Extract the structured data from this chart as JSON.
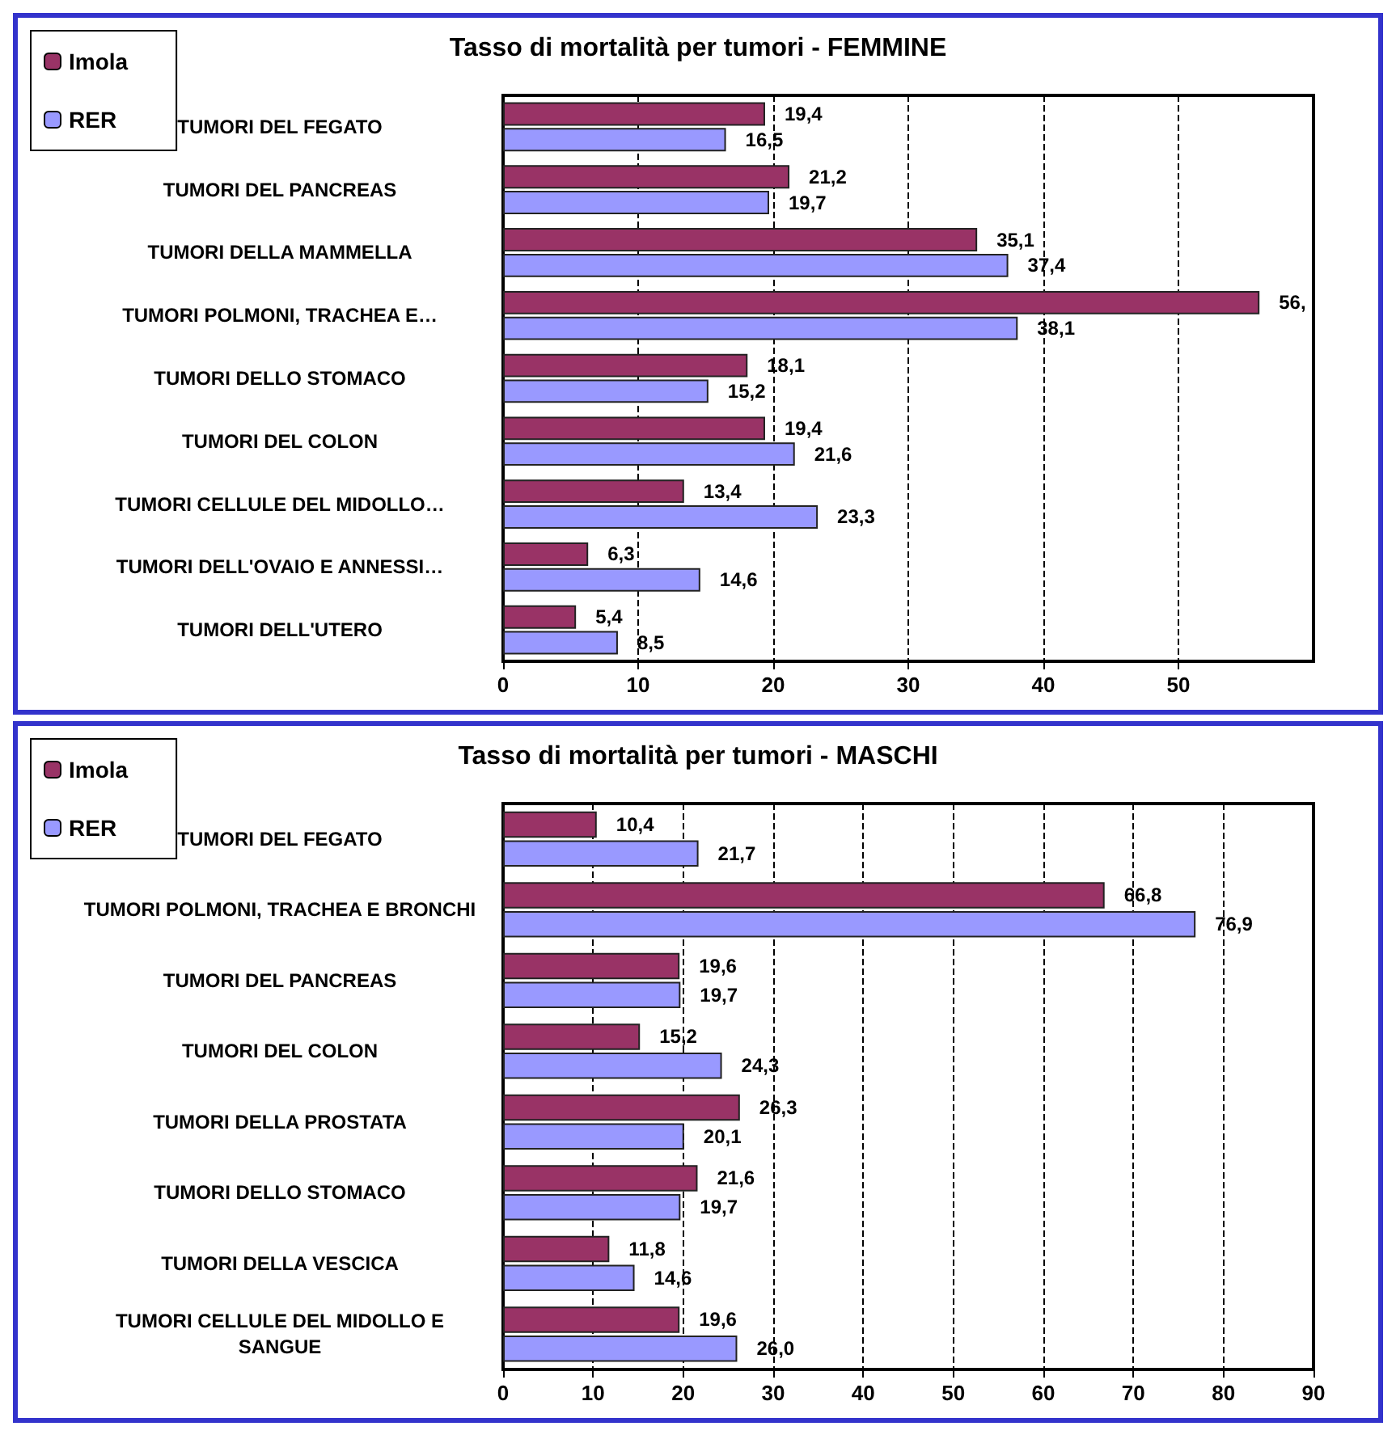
{
  "chart_data": [
    {
      "type": "bar",
      "orientation": "horizontal",
      "title": "Tasso di mortalità per tumori - FEMMINE",
      "categories": [
        "TUMORI DEL FEGATO",
        "TUMORI DEL PANCREAS",
        "TUMORI DELLA MAMMELLA",
        "TUMORI POLMONI, TRACHEA E…",
        "TUMORI DELLO STOMACO",
        "TUMORI DEL COLON",
        "TUMORI CELLULE DEL MIDOLLO…",
        "TUMORI DELL'OVAIO E ANNESSI…",
        "TUMORI DELL'UTERO"
      ],
      "series": [
        {
          "name": "Imola",
          "color": "#993366",
          "values": [
            19.4,
            21.2,
            35.1,
            56,
            18.1,
            19.4,
            13.4,
            6.3,
            5.4
          ],
          "value_labels": [
            "19,4",
            "21,2",
            "35,1",
            "56,",
            "18,1",
            "19,4",
            "13,4",
            "6,3",
            "5,4"
          ]
        },
        {
          "name": "RER",
          "color": "#9999ff",
          "values": [
            16.5,
            19.7,
            37.4,
            38.1,
            15.2,
            21.6,
            23.3,
            14.6,
            8.5
          ],
          "value_labels": [
            "16,5",
            "19,7",
            "37,4",
            "38,1",
            "15,2",
            "21,6",
            "23,3",
            "14,6",
            "8,5"
          ]
        }
      ],
      "xlim": [
        0,
        60
      ],
      "xticks": [
        0,
        10,
        20,
        30,
        40,
        50
      ],
      "grid": "x",
      "legend": "top left"
    },
    {
      "type": "bar",
      "orientation": "horizontal",
      "title": "Tasso di mortalità per tumori - MASCHI",
      "categories": [
        "TUMORI DEL FEGATO",
        "TUMORI POLMONI, TRACHEA E BRONCHI",
        "TUMORI DEL PANCREAS",
        "TUMORI DEL COLON",
        "TUMORI DELLA PROSTATA",
        "TUMORI DELLO STOMACO",
        "TUMORI DELLA VESCICA",
        "TUMORI CELLULE DEL MIDOLLO E\nSANGUE"
      ],
      "series": [
        {
          "name": "Imola",
          "color": "#993366",
          "values": [
            10.4,
            66.8,
            19.6,
            15.2,
            26.3,
            21.6,
            11.8,
            19.6
          ],
          "value_labels": [
            "10,4",
            "66,8",
            "19,6",
            "15,2",
            "26,3",
            "21,6",
            "11,8",
            "19,6"
          ]
        },
        {
          "name": "RER",
          "color": "#9999ff",
          "values": [
            21.7,
            76.9,
            19.7,
            24.3,
            20.1,
            19.7,
            14.6,
            26.0
          ],
          "value_labels": [
            "21,7",
            "76,9",
            "19,7",
            "24,3",
            "20,1",
            "19,7",
            "14,6",
            "26,0"
          ]
        }
      ],
      "xlim": [
        0,
        90
      ],
      "xticks": [
        0,
        10,
        20,
        30,
        40,
        50,
        60,
        70,
        80,
        90
      ],
      "grid": "x",
      "legend": "top left"
    }
  ]
}
